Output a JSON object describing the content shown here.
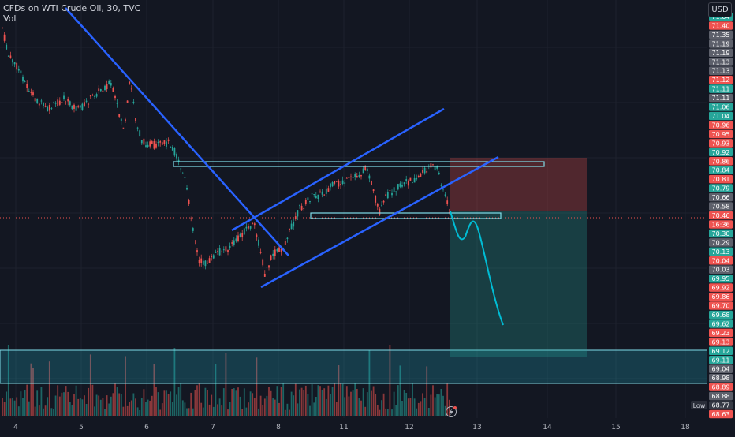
{
  "header": {
    "symbol_line": "CFDs on WTI Crude Oil, 30, TVC",
    "volume_label": "Vol"
  },
  "currency_button": "USD",
  "low_label": "Low",
  "colors": {
    "background": "#131722",
    "up": "#26a69a",
    "down": "#ef5350",
    "trendline": "#2962ff",
    "projection": "#00bcd4",
    "zone": "#26c6da"
  },
  "chart_data": {
    "type": "candlestick",
    "title": "CFDs on WTI Crude Oil, 30, TVC",
    "x_ticks": [
      "4",
      "5",
      "6",
      "7",
      "8",
      "11",
      "12",
      "13",
      "14",
      "15",
      "18"
    ],
    "price_labels": [
      {
        "text": "71.64",
        "color": "#26a69a"
      },
      {
        "text": "71.40",
        "color": "#ef5350"
      },
      {
        "text": "71.35",
        "color": "#5d606b"
      },
      {
        "text": "71.19",
        "color": "#5d606b"
      },
      {
        "text": "71.19",
        "color": "#5d606b"
      },
      {
        "text": "71.13",
        "color": "#5d606b"
      },
      {
        "text": "71.13",
        "color": "#5d606b"
      },
      {
        "text": "71.12",
        "color": "#ef5350"
      },
      {
        "text": "71.11",
        "color": "#26a69a"
      },
      {
        "text": "71.11",
        "color": "#5d606b"
      },
      {
        "text": "71.06",
        "color": "#26a69a"
      },
      {
        "text": "71.04",
        "color": "#26a69a"
      },
      {
        "text": "70.96",
        "color": "#ef5350"
      },
      {
        "text": "70.95",
        "color": "#ef5350"
      },
      {
        "text": "70.93",
        "color": "#ef5350"
      },
      {
        "text": "70.92",
        "color": "#26a69a"
      },
      {
        "text": "70.86",
        "color": "#ef5350"
      },
      {
        "text": "70.84",
        "color": "#26a69a"
      },
      {
        "text": "70.81",
        "color": "#ef5350"
      },
      {
        "text": "70.79",
        "color": "#26a69a"
      },
      {
        "text": "70.66",
        "color": "#5d606b"
      },
      {
        "text": "70.58",
        "color": "#5d606b"
      },
      {
        "text": "70.46",
        "color": "#ef5350"
      },
      {
        "text": "16:36",
        "color": "#ef5350"
      },
      {
        "text": "70.30",
        "color": "#26a69a"
      },
      {
        "text": "70.29",
        "color": "#5d606b"
      },
      {
        "text": "70.13",
        "color": "#26a69a"
      },
      {
        "text": "70.04",
        "color": "#ef5350"
      },
      {
        "text": "70.03",
        "color": "#5d606b"
      },
      {
        "text": "69.95",
        "color": "#26a69a"
      },
      {
        "text": "69.92",
        "color": "#ef5350"
      },
      {
        "text": "69.86",
        "color": "#ef5350"
      },
      {
        "text": "69.70",
        "color": "#ef5350"
      },
      {
        "text": "69.68",
        "color": "#26a69a"
      },
      {
        "text": "69.62",
        "color": "#26a69a"
      },
      {
        "text": "69.23",
        "color": "#ef5350"
      },
      {
        "text": "69.13",
        "color": "#ef5350"
      },
      {
        "text": "69.12",
        "color": "#26a69a"
      },
      {
        "text": "69.11",
        "color": "#26a69a"
      },
      {
        "text": "69.04",
        "color": "#5d606b"
      },
      {
        "text": "68.98",
        "color": "#5d606b"
      },
      {
        "text": "68.89",
        "color": "#ef5350"
      },
      {
        "text": "68.88",
        "color": "#5d606b"
      },
      {
        "text": "68.77",
        "color": "#363a45"
      },
      {
        "text": "68.63",
        "color": "#ef5350"
      }
    ],
    "current_price": "70.46",
    "countdown": "16:36"
  }
}
